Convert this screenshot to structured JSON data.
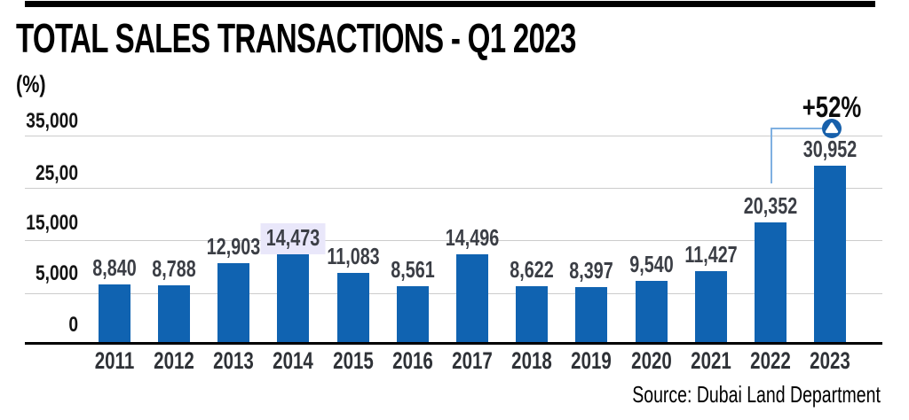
{
  "header": {
    "title": "TOTAL SALES TRANSACTIONS - Q1 2023",
    "unit_label": "(%)"
  },
  "chart_data": {
    "type": "bar",
    "title": "TOTAL SALES TRANSACTIONS - Q1 2023",
    "categories": [
      "2011",
      "2012",
      "2013",
      "2014",
      "2015",
      "2016",
      "2017",
      "2018",
      "2019",
      "2020",
      "2021",
      "2022",
      "2023"
    ],
    "values": [
      8840,
      8788,
      12903,
      14473,
      11083,
      8561,
      14496,
      8622,
      8397,
      9540,
      11427,
      20352,
      30952
    ],
    "value_labels": [
      "8,840",
      "8,788",
      "12,903",
      "14,473",
      "11,083",
      "8,561",
      "14,496",
      "8,622",
      "8,397",
      "9,540",
      "11,427",
      "20,352",
      "30,952"
    ],
    "highlighted_label_index": 3,
    "xlabel": "",
    "ylabel": "(%)",
    "ylim": [
      0,
      35000
    ],
    "grid": true,
    "y_axis": {
      "tick_labels": [
        "35,000",
        "25,00",
        "15,000",
        "5,000",
        "0"
      ]
    },
    "bar_color": "#1063b1",
    "grid_color": "#cccccc",
    "axis_color": "#000000",
    "highlight_color": "#e9e7fa",
    "annotation": {
      "text": "+52%",
      "icon": "up-arrow-circle-icon",
      "from_category": "2022",
      "to_category": "2023",
      "line_color": "#7fb0e1",
      "circle_color": "#1760ab"
    }
  },
  "footer": {
    "source": "Source: Dubai Land Department"
  }
}
